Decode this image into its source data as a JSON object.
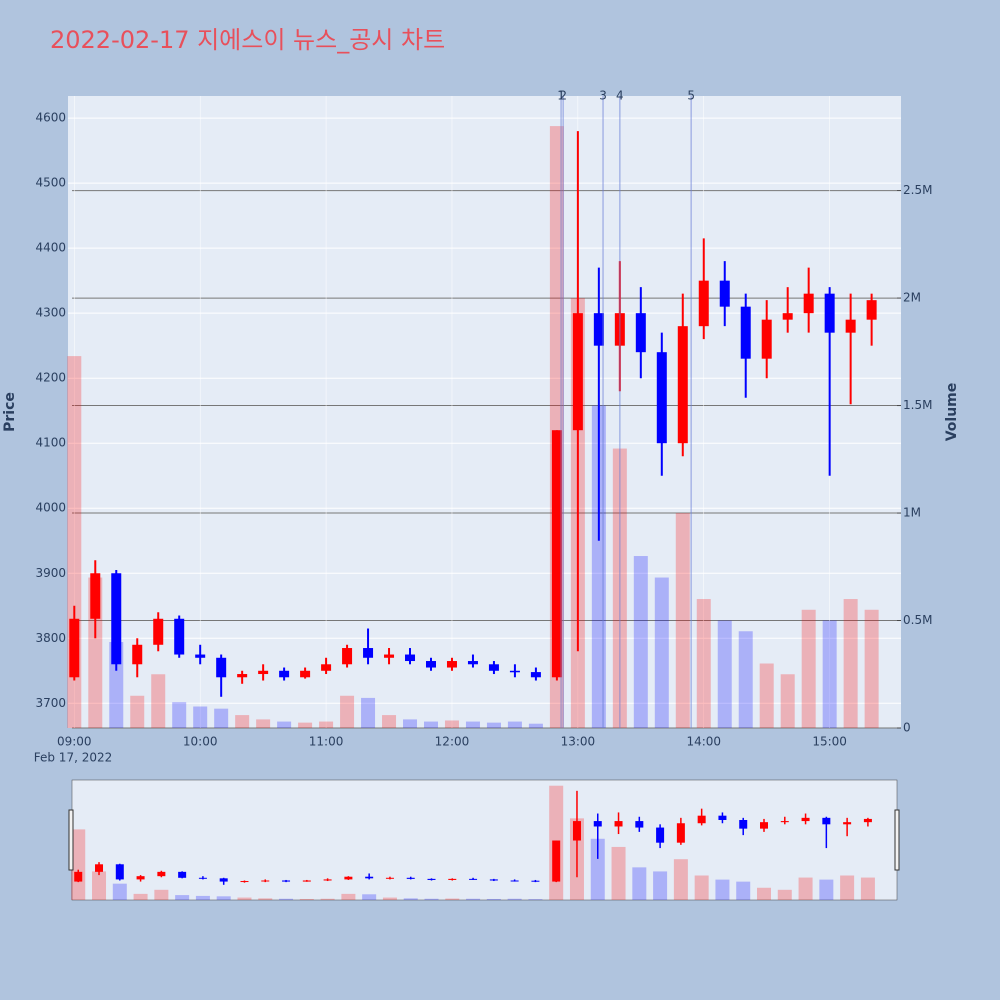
{
  "chart_data": {
    "type": "candlestick",
    "title": "2022-02-17 지에스이 뉴스_공시 차트",
    "y_label": "Price",
    "y2_label": "Volume",
    "x_date_label": "Feb 17, 2022",
    "increasing_color": "#ff0000",
    "decreasing_color": "#0000ff",
    "x": [
      "09:00",
      "09:10",
      "09:20",
      "09:30",
      "09:40",
      "09:50",
      "10:00",
      "10:10",
      "10:20",
      "10:30",
      "10:40",
      "10:50",
      "11:00",
      "11:10",
      "11:20",
      "11:30",
      "11:40",
      "11:50",
      "12:00",
      "12:10",
      "12:20",
      "12:30",
      "12:40",
      "12:50",
      "13:00",
      "13:10",
      "13:20",
      "13:30",
      "13:40",
      "13:50",
      "14:00",
      "14:10",
      "14:20",
      "14:30",
      "14:40",
      "14:50",
      "15:00",
      "15:10",
      "15:20"
    ],
    "open": [
      3740,
      3830,
      3900,
      3760,
      3790,
      3830,
      3775,
      3770,
      3740,
      3745,
      3750,
      3740,
      3750,
      3760,
      3785,
      3770,
      3775,
      3765,
      3755,
      3765,
      3760,
      3750,
      3748,
      3740,
      4120,
      4300,
      4250,
      4300,
      4240,
      4100,
      4280,
      4350,
      4310,
      4230,
      4290,
      4300,
      4330,
      4270,
      4290
    ],
    "high": [
      3850,
      3920,
      3905,
      3800,
      3840,
      3835,
      3790,
      3775,
      3750,
      3760,
      3755,
      3755,
      3770,
      3790,
      3815,
      3785,
      3785,
      3770,
      3770,
      3775,
      3765,
      3760,
      3755,
      4120,
      4580,
      4370,
      4380,
      4340,
      4270,
      4330,
      4415,
      4380,
      4330,
      4320,
      4340,
      4370,
      4340,
      4330,
      4330
    ],
    "low": [
      3735,
      3800,
      3750,
      3740,
      3780,
      3770,
      3760,
      3710,
      3730,
      3735,
      3735,
      3738,
      3745,
      3755,
      3760,
      3760,
      3760,
      3750,
      3750,
      3755,
      3745,
      3740,
      3735,
      3735,
      3780,
      3950,
      4180,
      4200,
      4050,
      4080,
      4260,
      4280,
      4170,
      4200,
      4270,
      4270,
      4050,
      4160,
      4250
    ],
    "close": [
      3830,
      3900,
      3760,
      3790,
      3830,
      3775,
      3770,
      3740,
      3745,
      3750,
      3740,
      3750,
      3760,
      3785,
      3770,
      3775,
      3765,
      3755,
      3765,
      3760,
      3750,
      3748,
      3740,
      4120,
      4300,
      4250,
      4300,
      4240,
      4100,
      4280,
      4350,
      4310,
      4230,
      4290,
      4300,
      4330,
      4270,
      4290,
      4320
    ],
    "volume": [
      1730000,
      700000,
      400000,
      150000,
      250000,
      120000,
      100000,
      90000,
      60000,
      40000,
      30000,
      25000,
      30000,
      150000,
      140000,
      60000,
      40000,
      30000,
      35000,
      30000,
      25000,
      30000,
      20000,
      2800000,
      2000000,
      1500000,
      1300000,
      800000,
      700000,
      1000000,
      600000,
      500000,
      450000,
      300000,
      250000,
      550000,
      500000,
      600000,
      550000
    ],
    "xlim": [
      "08:57",
      "15:34"
    ],
    "xticks": [
      "09:00",
      "10:00",
      "11:00",
      "12:00",
      "13:00",
      "14:00",
      "15:00"
    ],
    "ylim": [
      3662,
      4634
    ],
    "yticks": [
      3700,
      3800,
      3900,
      4000,
      4100,
      4200,
      4300,
      4400,
      4500,
      4600
    ],
    "y2lim": [
      0,
      2940000
    ],
    "y2ticks": [
      0,
      {
        "value": 500000,
        "label": "0.5M"
      },
      {
        "value": 1000000,
        "label": "1M"
      },
      {
        "value": 1500000,
        "label": "1.5M"
      },
      {
        "value": 2000000,
        "label": "2M"
      },
      {
        "value": 2500000,
        "label": "2.5M"
      }
    ],
    "annotations": [
      {
        "x": "12:52",
        "label": "1"
      },
      {
        "x": "12:53",
        "label": "2"
      },
      {
        "x": "13:12",
        "label": "3"
      },
      {
        "x": "13:20",
        "label": "4"
      },
      {
        "x": "13:54",
        "label": "5"
      }
    ],
    "grid": true
  }
}
